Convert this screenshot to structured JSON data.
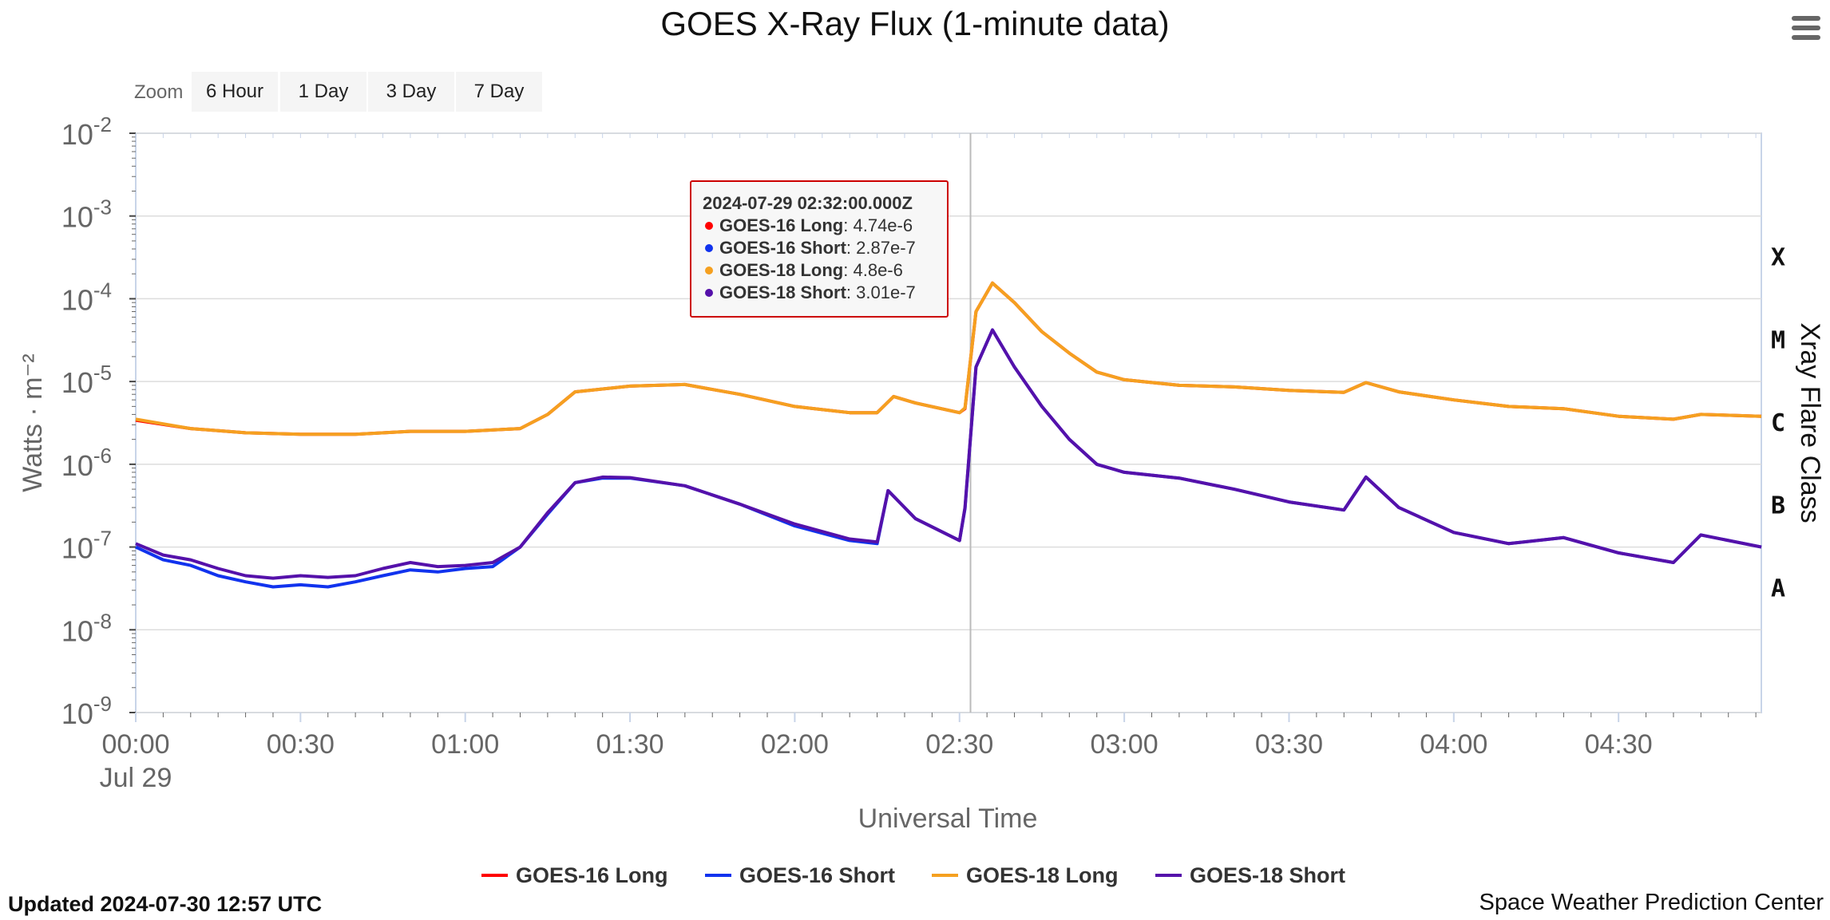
{
  "title": "GOES X-Ray Flux (1-minute data)",
  "menu_icon": "hamburger-menu-icon",
  "zoom": {
    "label": "Zoom",
    "buttons": [
      "6 Hour",
      "1 Day",
      "3 Day",
      "7 Day"
    ]
  },
  "footer": {
    "updated": "Updated 2024-07-30 12:57 UTC",
    "credit": "Space Weather Prediction Center"
  },
  "tooltip": {
    "time": "2024-07-29 02:32:00.000Z",
    "rows": [
      {
        "name": "GOES-16 Long",
        "value": "4.74e-6"
      },
      {
        "name": "GOES-16 Short",
        "value": "2.87e-7"
      },
      {
        "name": "GOES-18 Long",
        "value": "4.8e-6"
      },
      {
        "name": "GOES-18 Short",
        "value": "3.01e-7"
      }
    ]
  },
  "colors": {
    "goes16_long": "#ff0000",
    "goes16_short": "#1133ee",
    "goes18_long": "#f5a020",
    "goes18_short": "#5511aa",
    "grid": "#dddddd",
    "axis_text": "#666666",
    "tooltip_border": "#cc0000"
  },
  "chart_data": {
    "type": "line",
    "title": "GOES X-Ray Flux (1-minute data)",
    "xlabel": "Universal Time",
    "ylabel": "Watts · m⁻²",
    "y2label": "Xray Flare Class",
    "yscale": "log",
    "ylim": [
      1e-09,
      0.01
    ],
    "xlim": [
      "00:00",
      "04:56"
    ],
    "x_ticks": [
      "00:00",
      "00:30",
      "01:00",
      "01:30",
      "02:00",
      "02:30",
      "03:00",
      "03:30",
      "04:00",
      "04:30"
    ],
    "x_tick_date": "Jul 29",
    "y_ticks": [
      {
        "base": "10",
        "exp": "-2"
      },
      {
        "base": "10",
        "exp": "-3"
      },
      {
        "base": "10",
        "exp": "-4"
      },
      {
        "base": "10",
        "exp": "-5"
      },
      {
        "base": "10",
        "exp": "-6"
      },
      {
        "base": "10",
        "exp": "-7"
      },
      {
        "base": "10",
        "exp": "-8"
      },
      {
        "base": "10",
        "exp": "-9"
      }
    ],
    "flare_classes": [
      {
        "label": "X",
        "level": 0.0001
      },
      {
        "label": "M",
        "level": 1e-05
      },
      {
        "label": "C",
        "level": 1e-06
      },
      {
        "label": "B",
        "level": 1e-07
      },
      {
        "label": "A",
        "level": 1e-08
      }
    ],
    "crosshair_time": "02:32",
    "grid": true,
    "legend_position": "bottom-center",
    "series": [
      {
        "name": "GOES-16 Long",
        "color": "#ff0000",
        "points": [
          [
            "00:00",
            3.4e-06
          ],
          [
            "00:10",
            2.7e-06
          ],
          [
            "00:20",
            2.4e-06
          ],
          [
            "00:30",
            2.3e-06
          ],
          [
            "00:40",
            2.3e-06
          ],
          [
            "00:50",
            2.5e-06
          ],
          [
            "01:00",
            2.5e-06
          ],
          [
            "01:10",
            2.7e-06
          ],
          [
            "01:15",
            4e-06
          ],
          [
            "01:20",
            7.5e-06
          ],
          [
            "01:30",
            8.8e-06
          ],
          [
            "01:40",
            9.2e-06
          ],
          [
            "01:50",
            7e-06
          ],
          [
            "02:00",
            5e-06
          ],
          [
            "02:10",
            4.2e-06
          ],
          [
            "02:15",
            4.2e-06
          ],
          [
            "02:18",
            6.6e-06
          ],
          [
            "02:22",
            5.5e-06
          ],
          [
            "02:30",
            4.2e-06
          ],
          [
            "02:31",
            4.7e-06
          ],
          [
            "02:33",
            7e-05
          ],
          [
            "02:36",
            0.000155
          ],
          [
            "02:40",
            9e-05
          ],
          [
            "02:45",
            4e-05
          ],
          [
            "02:50",
            2.2e-05
          ],
          [
            "02:55",
            1.3e-05
          ],
          [
            "03:00",
            1.05e-05
          ],
          [
            "03:10",
            9e-06
          ],
          [
            "03:20",
            8.6e-06
          ],
          [
            "03:30",
            7.8e-06
          ],
          [
            "03:40",
            7.4e-06
          ],
          [
            "03:44",
            9.7e-06
          ],
          [
            "03:50",
            7.5e-06
          ],
          [
            "04:00",
            6e-06
          ],
          [
            "04:10",
            5e-06
          ],
          [
            "04:20",
            4.7e-06
          ],
          [
            "04:30",
            3.8e-06
          ],
          [
            "04:40",
            3.5e-06
          ],
          [
            "04:45",
            4e-06
          ],
          [
            "04:56",
            3.8e-06
          ]
        ]
      },
      {
        "name": "GOES-16 Short",
        "color": "#1133ee",
        "points": [
          [
            "00:00",
            1e-07
          ],
          [
            "00:05",
            7e-08
          ],
          [
            "00:10",
            6e-08
          ],
          [
            "00:15",
            4.5e-08
          ],
          [
            "00:20",
            3.8e-08
          ],
          [
            "00:25",
            3.3e-08
          ],
          [
            "00:30",
            3.5e-08
          ],
          [
            "00:35",
            3.3e-08
          ],
          [
            "00:40",
            3.8e-08
          ],
          [
            "00:45",
            4.5e-08
          ],
          [
            "00:50",
            5.3e-08
          ],
          [
            "00:55",
            5e-08
          ],
          [
            "01:00",
            5.5e-08
          ],
          [
            "01:05",
            5.8e-08
          ],
          [
            "01:10",
            1e-07
          ],
          [
            "01:15",
            2.5e-07
          ],
          [
            "01:20",
            6e-07
          ],
          [
            "01:25",
            6.8e-07
          ],
          [
            "01:30",
            6.8e-07
          ],
          [
            "01:40",
            5.5e-07
          ],
          [
            "01:50",
            3.3e-07
          ],
          [
            "02:00",
            1.8e-07
          ],
          [
            "02:10",
            1.2e-07
          ],
          [
            "02:15",
            1.1e-07
          ],
          [
            "02:17",
            4.8e-07
          ],
          [
            "02:22",
            2.2e-07
          ],
          [
            "02:30",
            1.2e-07
          ],
          [
            "02:31",
            2.9e-07
          ],
          [
            "02:33",
            1.5e-05
          ],
          [
            "02:36",
            4.2e-05
          ],
          [
            "02:40",
            1.5e-05
          ],
          [
            "02:45",
            5e-06
          ],
          [
            "02:50",
            2e-06
          ],
          [
            "02:55",
            1e-06
          ],
          [
            "03:00",
            8e-07
          ],
          [
            "03:10",
            6.8e-07
          ],
          [
            "03:20",
            5e-07
          ],
          [
            "03:30",
            3.5e-07
          ],
          [
            "03:40",
            2.8e-07
          ],
          [
            "03:44",
            7e-07
          ],
          [
            "03:50",
            3e-07
          ],
          [
            "04:00",
            1.5e-07
          ],
          [
            "04:10",
            1.1e-07
          ],
          [
            "04:20",
            1.3e-07
          ],
          [
            "04:30",
            8.5e-08
          ],
          [
            "04:40",
            6.5e-08
          ],
          [
            "04:45",
            1.4e-07
          ],
          [
            "04:56",
            1e-07
          ]
        ]
      },
      {
        "name": "GOES-18 Long",
        "color": "#f5a020",
        "points": [
          [
            "00:00",
            3.5e-06
          ],
          [
            "00:10",
            2.7e-06
          ],
          [
            "00:20",
            2.4e-06
          ],
          [
            "00:30",
            2.3e-06
          ],
          [
            "00:40",
            2.3e-06
          ],
          [
            "00:50",
            2.5e-06
          ],
          [
            "01:00",
            2.5e-06
          ],
          [
            "01:10",
            2.7e-06
          ],
          [
            "01:15",
            4e-06
          ],
          [
            "01:20",
            7.5e-06
          ],
          [
            "01:30",
            8.8e-06
          ],
          [
            "01:40",
            9.2e-06
          ],
          [
            "01:50",
            7e-06
          ],
          [
            "02:00",
            5e-06
          ],
          [
            "02:10",
            4.2e-06
          ],
          [
            "02:15",
            4.2e-06
          ],
          [
            "02:18",
            6.6e-06
          ],
          [
            "02:22",
            5.5e-06
          ],
          [
            "02:30",
            4.2e-06
          ],
          [
            "02:31",
            4.8e-06
          ],
          [
            "02:33",
            7e-05
          ],
          [
            "02:36",
            0.000155
          ],
          [
            "02:40",
            9e-05
          ],
          [
            "02:45",
            4e-05
          ],
          [
            "02:50",
            2.2e-05
          ],
          [
            "02:55",
            1.3e-05
          ],
          [
            "03:00",
            1.05e-05
          ],
          [
            "03:10",
            9e-06
          ],
          [
            "03:20",
            8.6e-06
          ],
          [
            "03:30",
            7.8e-06
          ],
          [
            "03:40",
            7.4e-06
          ],
          [
            "03:44",
            9.7e-06
          ],
          [
            "03:50",
            7.5e-06
          ],
          [
            "04:00",
            6e-06
          ],
          [
            "04:10",
            5e-06
          ],
          [
            "04:20",
            4.7e-06
          ],
          [
            "04:30",
            3.8e-06
          ],
          [
            "04:40",
            3.5e-06
          ],
          [
            "04:45",
            4e-06
          ],
          [
            "04:56",
            3.8e-06
          ]
        ]
      },
      {
        "name": "GOES-18 Short",
        "color": "#5511aa",
        "points": [
          [
            "00:00",
            1.1e-07
          ],
          [
            "00:05",
            8e-08
          ],
          [
            "00:10",
            7e-08
          ],
          [
            "00:15",
            5.5e-08
          ],
          [
            "00:20",
            4.5e-08
          ],
          [
            "00:25",
            4.2e-08
          ],
          [
            "00:30",
            4.5e-08
          ],
          [
            "00:35",
            4.3e-08
          ],
          [
            "00:40",
            4.5e-08
          ],
          [
            "00:45",
            5.5e-08
          ],
          [
            "00:50",
            6.5e-08
          ],
          [
            "00:55",
            5.8e-08
          ],
          [
            "01:00",
            6e-08
          ],
          [
            "01:05",
            6.5e-08
          ],
          [
            "01:10",
            1e-07
          ],
          [
            "01:15",
            2.6e-07
          ],
          [
            "01:20",
            6e-07
          ],
          [
            "01:25",
            7e-07
          ],
          [
            "01:30",
            6.9e-07
          ],
          [
            "01:40",
            5.5e-07
          ],
          [
            "01:50",
            3.3e-07
          ],
          [
            "02:00",
            1.9e-07
          ],
          [
            "02:10",
            1.25e-07
          ],
          [
            "02:15",
            1.15e-07
          ],
          [
            "02:17",
            4.8e-07
          ],
          [
            "02:22",
            2.2e-07
          ],
          [
            "02:30",
            1.2e-07
          ],
          [
            "02:31",
            3e-07
          ],
          [
            "02:33",
            1.5e-05
          ],
          [
            "02:36",
            4.2e-05
          ],
          [
            "02:40",
            1.5e-05
          ],
          [
            "02:45",
            5e-06
          ],
          [
            "02:50",
            2e-06
          ],
          [
            "02:55",
            1e-06
          ],
          [
            "03:00",
            8e-07
          ],
          [
            "03:10",
            6.8e-07
          ],
          [
            "03:20",
            5e-07
          ],
          [
            "03:30",
            3.5e-07
          ],
          [
            "03:40",
            2.8e-07
          ],
          [
            "03:44",
            7e-07
          ],
          [
            "03:50",
            3e-07
          ],
          [
            "04:00",
            1.5e-07
          ],
          [
            "04:10",
            1.1e-07
          ],
          [
            "04:20",
            1.3e-07
          ],
          [
            "04:30",
            8.5e-08
          ],
          [
            "04:40",
            6.5e-08
          ],
          [
            "04:45",
            1.4e-07
          ],
          [
            "04:56",
            1e-07
          ]
        ]
      }
    ]
  }
}
